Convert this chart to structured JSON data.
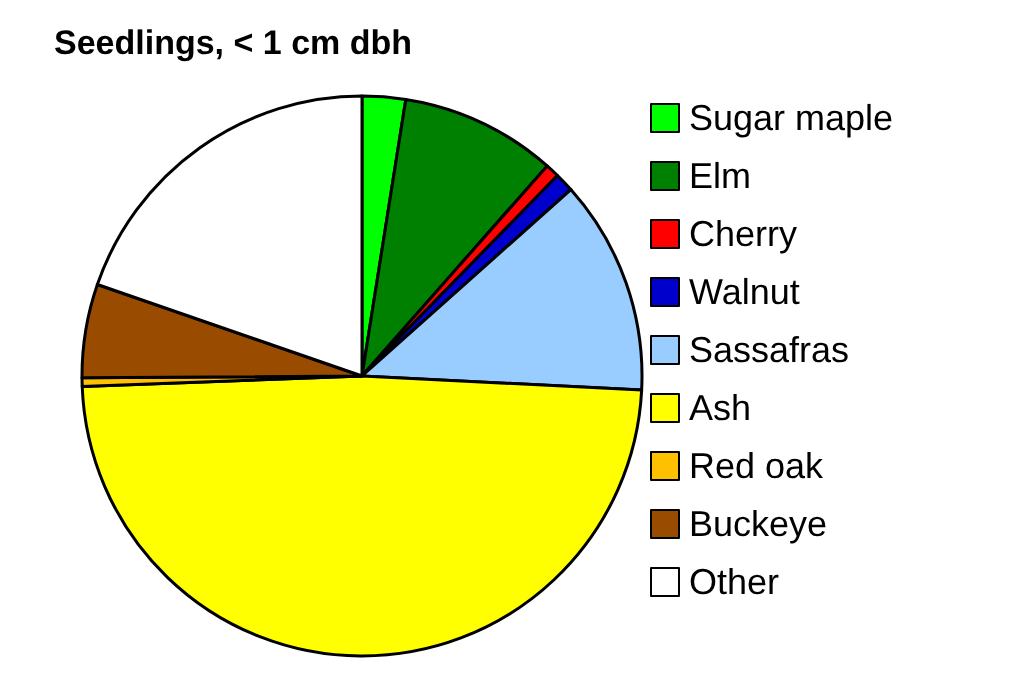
{
  "chart_data": {
    "type": "pie",
    "title": "Seedlings, < 1 cm dbh",
    "categories": [
      "Sugar maple",
      "Elm",
      "Cherry",
      "Walnut",
      "Sassafras",
      "Ash",
      "Red oak",
      "Buckeye",
      "Other"
    ],
    "values": [
      2.5,
      9,
      0.8,
      1.1,
      12.4,
      48.6,
      0.5,
      5.4,
      19.7
    ],
    "colors": [
      "#00ff00",
      "#008000",
      "#ff0000",
      "#0000cc",
      "#99ccff",
      "#ffff00",
      "#ffc000",
      "#994c00",
      "#ffffff"
    ],
    "legend": "right"
  }
}
